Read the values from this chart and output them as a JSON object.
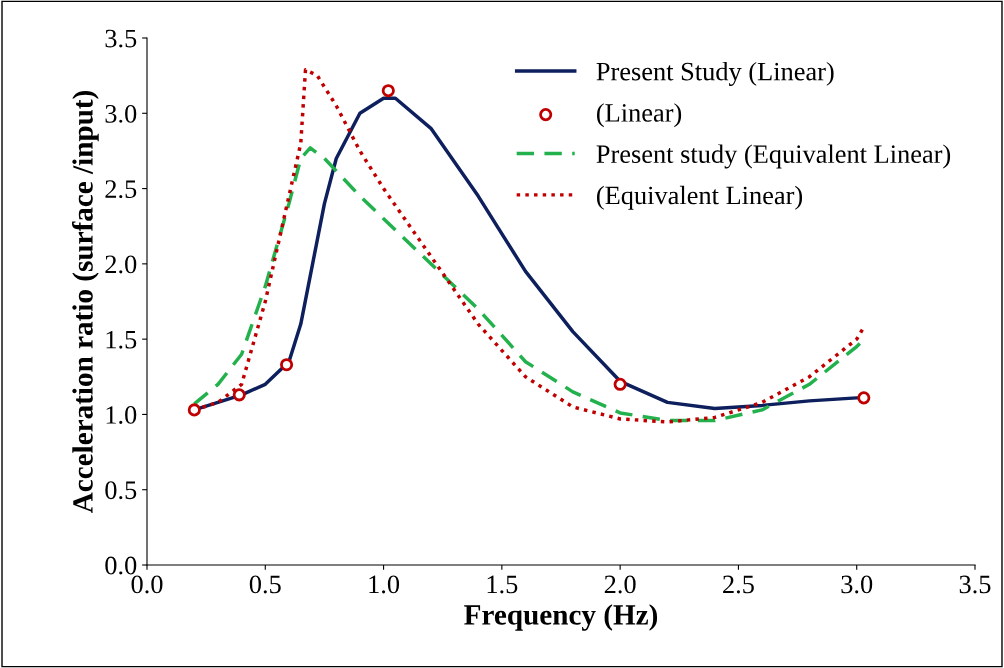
{
  "chart_data": {
    "type": "line",
    "xlabel": "Frequency (Hz)",
    "ylabel": "Acceleration ratio (surface /input)",
    "xlim": [
      0.0,
      3.5
    ],
    "xticks": [
      {
        "value": 0,
        "label": "0.0"
      },
      0.5,
      {
        "value": 1,
        "label": "1.0"
      },
      1.5,
      {
        "value": 2,
        "label": "2.0"
      },
      2.5,
      {
        "value": 3,
        "label": "3.0"
      },
      3.5
    ],
    "ylim": [
      0.0,
      3.5
    ],
    "yticks": [
      {
        "value": 0,
        "label": "0.0"
      },
      0.5,
      {
        "value": 1,
        "label": "1.0"
      },
      1.5,
      {
        "value": 2,
        "label": "2.0"
      },
      2.5,
      {
        "value": 3,
        "label": "3.0"
      },
      3.5
    ],
    "grid": false,
    "legend": "top right",
    "series": [
      {
        "name": "Present Study (Linear)",
        "color": "#0d1f5c",
        "line_style": "solid",
        "marker": "none",
        "x": [
          0.2,
          0.4,
          0.5,
          0.6,
          0.65,
          0.7,
          0.75,
          0.8,
          0.9,
          1.0,
          1.05,
          1.2,
          1.4,
          1.6,
          1.8,
          2.0,
          2.2,
          2.4,
          2.6,
          2.8,
          3.0,
          3.03
        ],
        "values": [
          1.03,
          1.13,
          1.2,
          1.35,
          1.6,
          2.0,
          2.4,
          2.7,
          3.0,
          3.1,
          3.1,
          2.9,
          2.45,
          1.95,
          1.55,
          1.22,
          1.08,
          1.04,
          1.06,
          1.09,
          1.11,
          1.11
        ]
      },
      {
        "name": "(Linear)",
        "type": "scatter",
        "color": "#c00000",
        "marker": "circle",
        "x": [
          0.2,
          0.39,
          0.59,
          1.02,
          2.0,
          3.03
        ],
        "values": [
          1.03,
          1.13,
          1.33,
          3.15,
          1.2,
          1.11
        ]
      },
      {
        "name": "Present study (Equivalent Linear)",
        "color": "#22b14c",
        "line_style": "dashed",
        "marker": "none",
        "x": [
          0.2,
          0.3,
          0.4,
          0.5,
          0.6,
          0.65,
          0.69,
          0.75,
          0.9,
          1.0,
          1.2,
          1.4,
          1.6,
          1.8,
          2.0,
          2.2,
          2.4,
          2.6,
          2.8,
          3.0,
          3.03
        ],
        "values": [
          1.07,
          1.2,
          1.4,
          1.85,
          2.4,
          2.7,
          2.77,
          2.7,
          2.45,
          2.3,
          2.0,
          1.7,
          1.35,
          1.15,
          1.01,
          0.96,
          0.96,
          1.03,
          1.2,
          1.45,
          1.5
        ]
      },
      {
        "name": "(Equivalent Linear)",
        "color": "#c00000",
        "line_style": "dotted",
        "marker": "none",
        "x": [
          0.2,
          0.3,
          0.4,
          0.5,
          0.6,
          0.65,
          0.67,
          0.72,
          0.8,
          0.9,
          1.0,
          1.2,
          1.4,
          1.6,
          1.8,
          2.0,
          2.2,
          2.4,
          2.6,
          2.8,
          3.0,
          3.03
        ],
        "values": [
          1.03,
          1.08,
          1.2,
          1.75,
          2.45,
          2.8,
          3.29,
          3.25,
          3.05,
          2.75,
          2.5,
          2.05,
          1.6,
          1.25,
          1.05,
          0.97,
          0.95,
          0.98,
          1.08,
          1.25,
          1.5,
          1.58
        ]
      }
    ]
  }
}
